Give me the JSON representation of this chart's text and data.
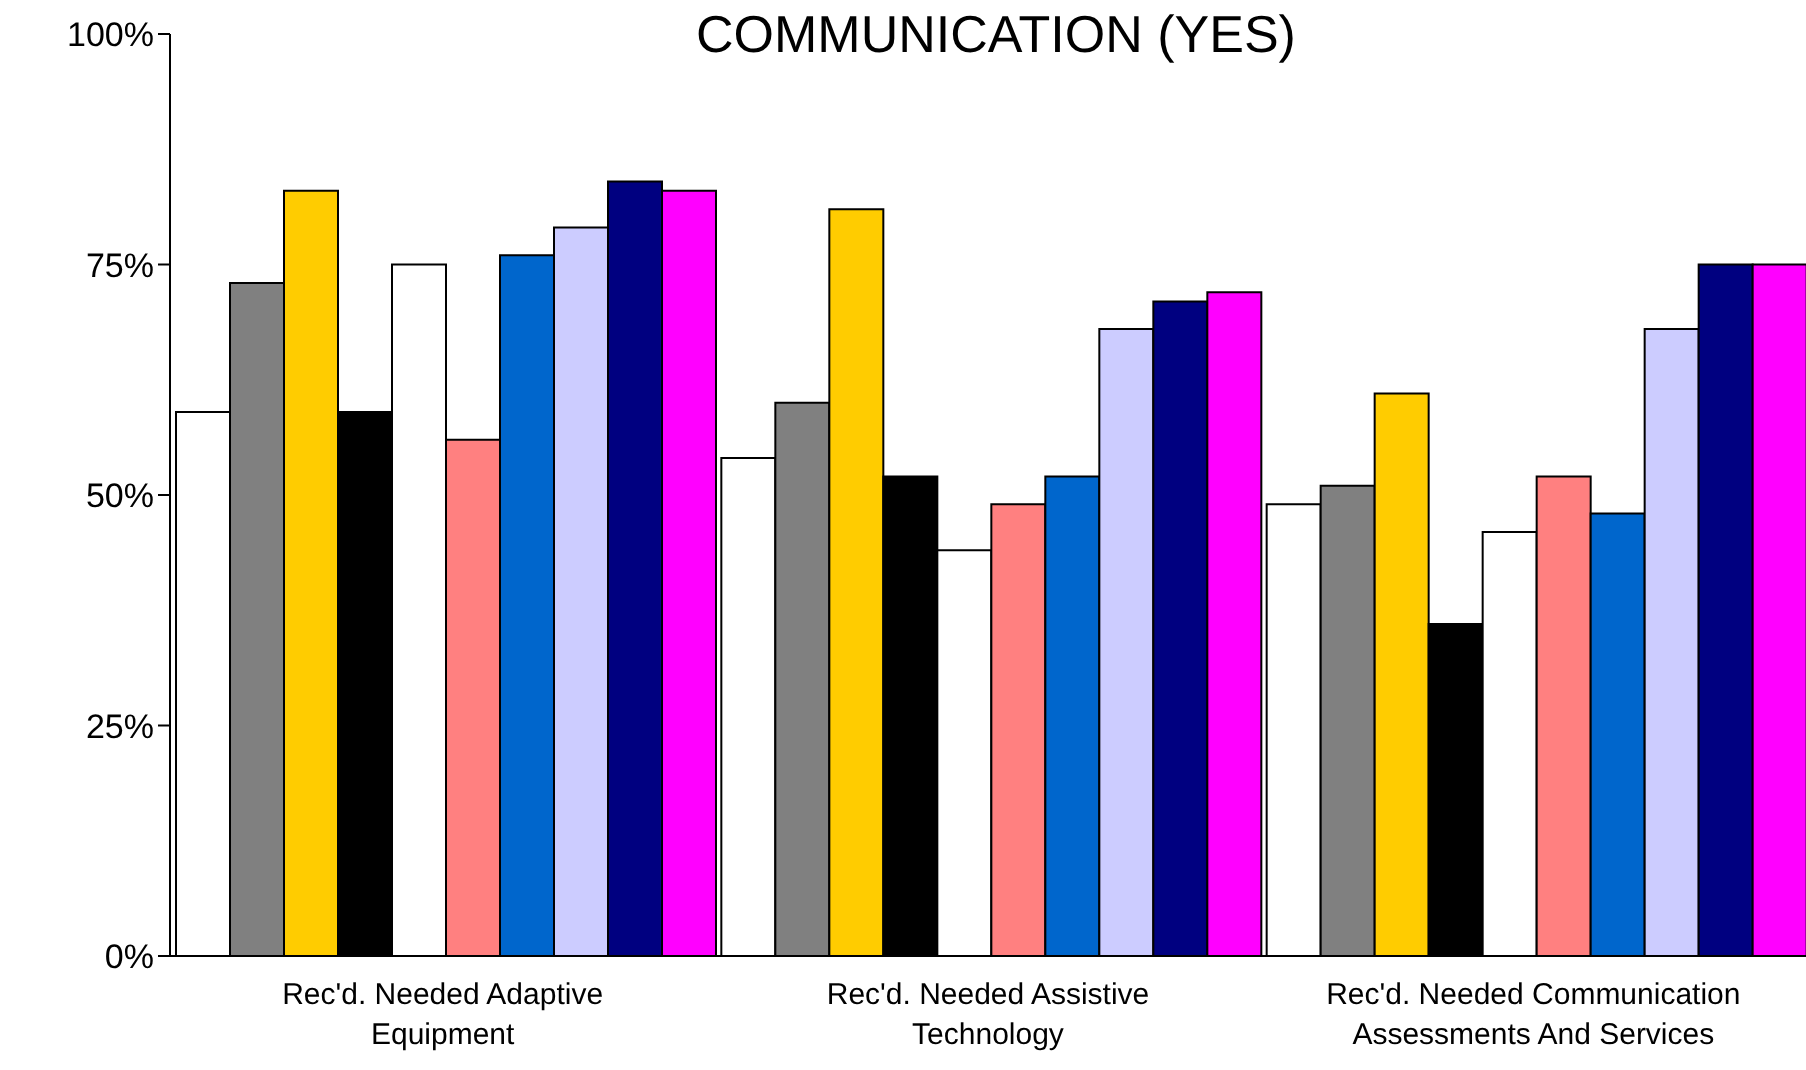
{
  "chart_data": {
    "type": "bar",
    "title": "COMMUNICATION (YES)",
    "categories": [
      "Rec'd. Needed Adaptive Equipment",
      "Rec'd. Needed Assistive Technology",
      "Rec'd. Needed Communication Assessments And Services"
    ],
    "series": [
      {
        "color": "#ffffff",
        "values": [
          59,
          54,
          49
        ]
      },
      {
        "color": "#808080",
        "values": [
          73,
          60,
          51
        ]
      },
      {
        "color": "#ffcc00",
        "values": [
          83,
          81,
          61
        ]
      },
      {
        "color": "#000000",
        "values": [
          59,
          52,
          36
        ]
      },
      {
        "color": "#ffffff",
        "values": [
          75,
          44,
          46
        ]
      },
      {
        "color": "#ff8080",
        "values": [
          56,
          49,
          52
        ]
      },
      {
        "color": "#0066cc",
        "values": [
          76,
          52,
          48
        ]
      },
      {
        "color": "#ccccff",
        "values": [
          79,
          68,
          68
        ]
      },
      {
        "color": "#000080",
        "values": [
          84,
          71,
          75
        ]
      },
      {
        "color": "#ff00ff",
        "values": [
          83,
          72,
          75
        ]
      }
    ],
    "ylim": [
      0,
      100
    ],
    "yticks": [
      {
        "value": 0,
        "label": "0%"
      },
      {
        "value": 25,
        "label": "25%"
      },
      {
        "value": 50,
        "label": "50%"
      },
      {
        "value": 75,
        "label": "75%"
      },
      {
        "value": 100,
        "label": "100%"
      }
    ],
    "grid": false,
    "legend": false
  }
}
